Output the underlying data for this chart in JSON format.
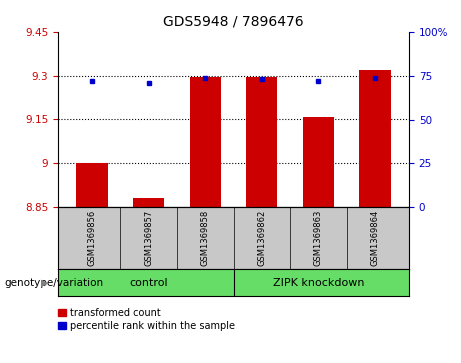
{
  "title": "GDS5948 / 7896476",
  "samples": [
    "GSM1369856",
    "GSM1369857",
    "GSM1369858",
    "GSM1369862",
    "GSM1369863",
    "GSM1369864"
  ],
  "red_values": [
    9.0,
    8.882,
    9.297,
    9.297,
    9.157,
    9.32
  ],
  "blue_values": [
    72,
    71,
    74,
    73,
    72,
    74
  ],
  "ylim_left": [
    8.85,
    9.45
  ],
  "ylim_right": [
    0,
    100
  ],
  "yticks_left": [
    8.85,
    9.0,
    9.15,
    9.3,
    9.45
  ],
  "yticks_right": [
    0,
    25,
    50,
    75,
    100
  ],
  "ytick_labels_left": [
    "8.85",
    "9",
    "9.15",
    "9.3",
    "9.45"
  ],
  "ytick_labels_right": [
    "0",
    "25",
    "50",
    "75",
    "100%"
  ],
  "hlines": [
    9.0,
    9.15,
    9.3
  ],
  "groups": [
    {
      "label": "control",
      "indices": [
        0,
        1,
        2
      ]
    },
    {
      "label": "ZIPK knockdown",
      "indices": [
        3,
        4,
        5
      ]
    }
  ],
  "group_label_prefix": "genotype/variation",
  "legend_red": "transformed count",
  "legend_blue": "percentile rank within the sample",
  "bar_color": "#CC0000",
  "dot_color": "#0000CC",
  "bar_bottom": 8.85,
  "bar_width": 0.55,
  "tick_color_left": "#CC0000",
  "tick_color_right": "#0000CC",
  "title_fontsize": 10,
  "tick_fontsize": 7.5,
  "sample_fontsize": 6,
  "group_fontsize": 8,
  "legend_fontsize": 7,
  "background_plot": "#FFFFFF",
  "background_label": "#C8C8C8",
  "background_group": "#66DD66"
}
